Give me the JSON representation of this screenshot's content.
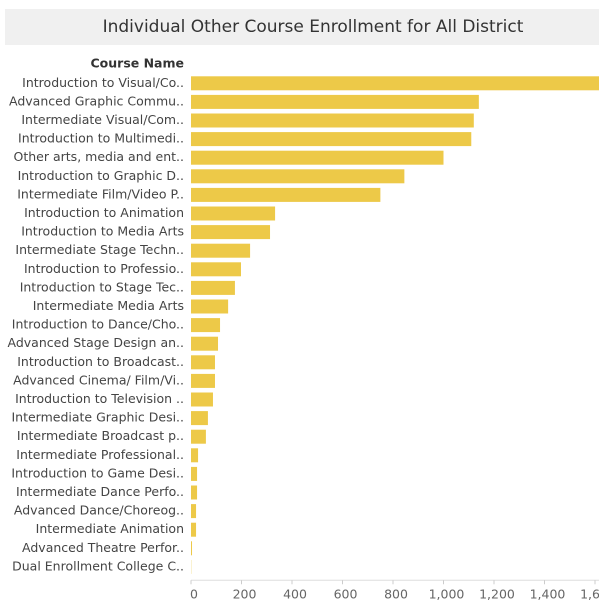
{
  "chart_data": {
    "type": "barh",
    "title": "Individual Other Course Enrollment for All District",
    "y_axis_label": "Course Name",
    "categories": [
      "Introduction to Visual/Co..",
      "Advanced Graphic Commu..",
      "Intermediate Visual/Com..",
      "Introduction to Multimedi..",
      "Other arts, media and ent..",
      "Introduction to Graphic D..",
      "Intermediate Film/Video P..",
      "Introduction to Animation",
      "Introduction to Media Arts",
      "Intermediate Stage Techn..",
      "Introduction to Professio..",
      "Introduction to Stage Tec..",
      "Intermediate Media Arts",
      "Introduction to Dance/Cho..",
      "Advanced Stage Design an..",
      "Introduction to Broadcast..",
      "Advanced Cinema/ Film/Vi..",
      "Introduction to Television ..",
      "Intermediate Graphic Desi..",
      "Intermediate Broadcast p..",
      "Intermediate Professional..",
      "Introduction to Game Desi..",
      "Intermediate Dance Perfo..",
      "Advanced Dance/Choreog..",
      "Intermediate Animation",
      "Advanced Theatre Perfor..",
      "Dual Enrollment College C.."
    ],
    "values": [
      1650,
      1140,
      1120,
      1110,
      1000,
      845,
      750,
      333,
      313,
      234,
      198,
      174,
      147,
      115,
      107,
      95,
      95,
      87,
      67,
      59,
      28,
      24,
      24,
      20,
      20,
      4,
      1
    ],
    "color": "#edc948",
    "xlim": [
      0,
      1600
    ],
    "xticks": [
      0,
      200,
      400,
      600,
      800,
      {
        "value": 1000,
        "label": "1,000"
      },
      {
        "value": 1200,
        "label": "1,200"
      },
      {
        "value": 1400,
        "label": "1,400"
      },
      {
        "value": 1600,
        "label": "1,600"
      }
    ]
  }
}
